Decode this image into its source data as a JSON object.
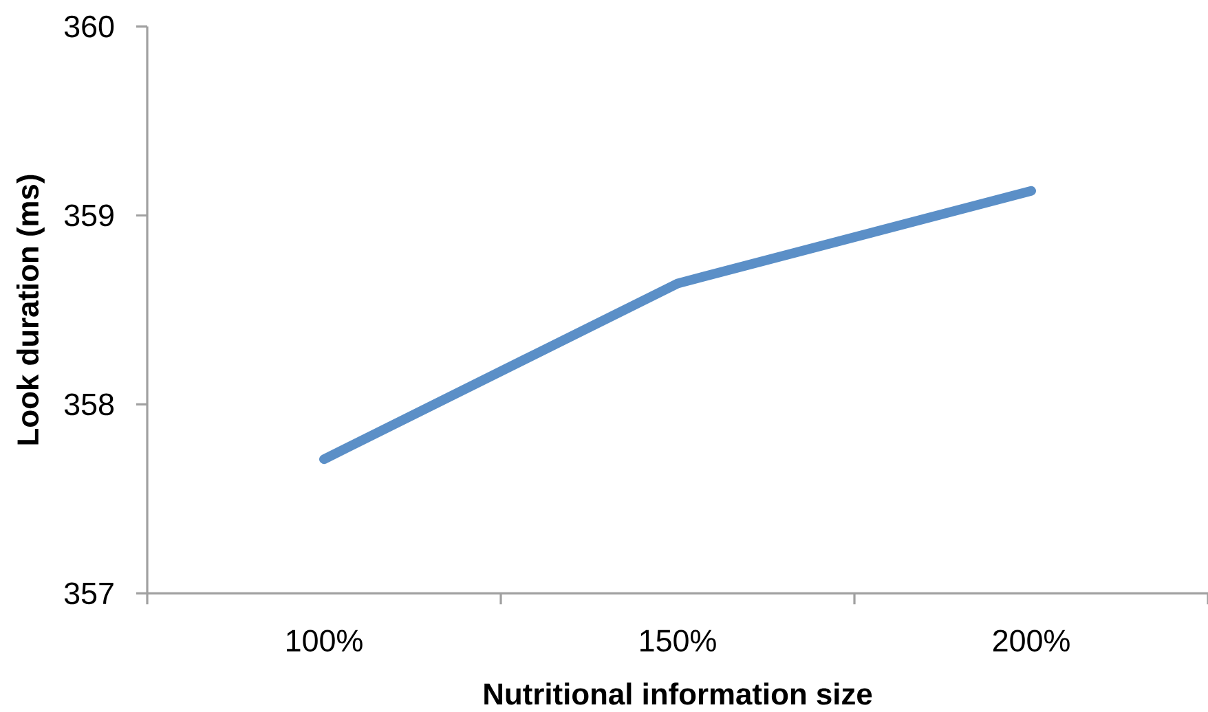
{
  "chart_data": {
    "type": "line",
    "xlabel": "Nutritional information size",
    "ylabel": "Look duration (ms)",
    "categories": [
      "100%",
      "150%",
      "200%"
    ],
    "series": [
      {
        "color": "#5b8fc7",
        "values": [
          357.71,
          358.64,
          359.13
        ]
      }
    ],
    "ylim": [
      357,
      360
    ],
    "yticks": [
      357,
      358,
      359,
      360
    ],
    "marker": "none",
    "line_style": "solid"
  }
}
